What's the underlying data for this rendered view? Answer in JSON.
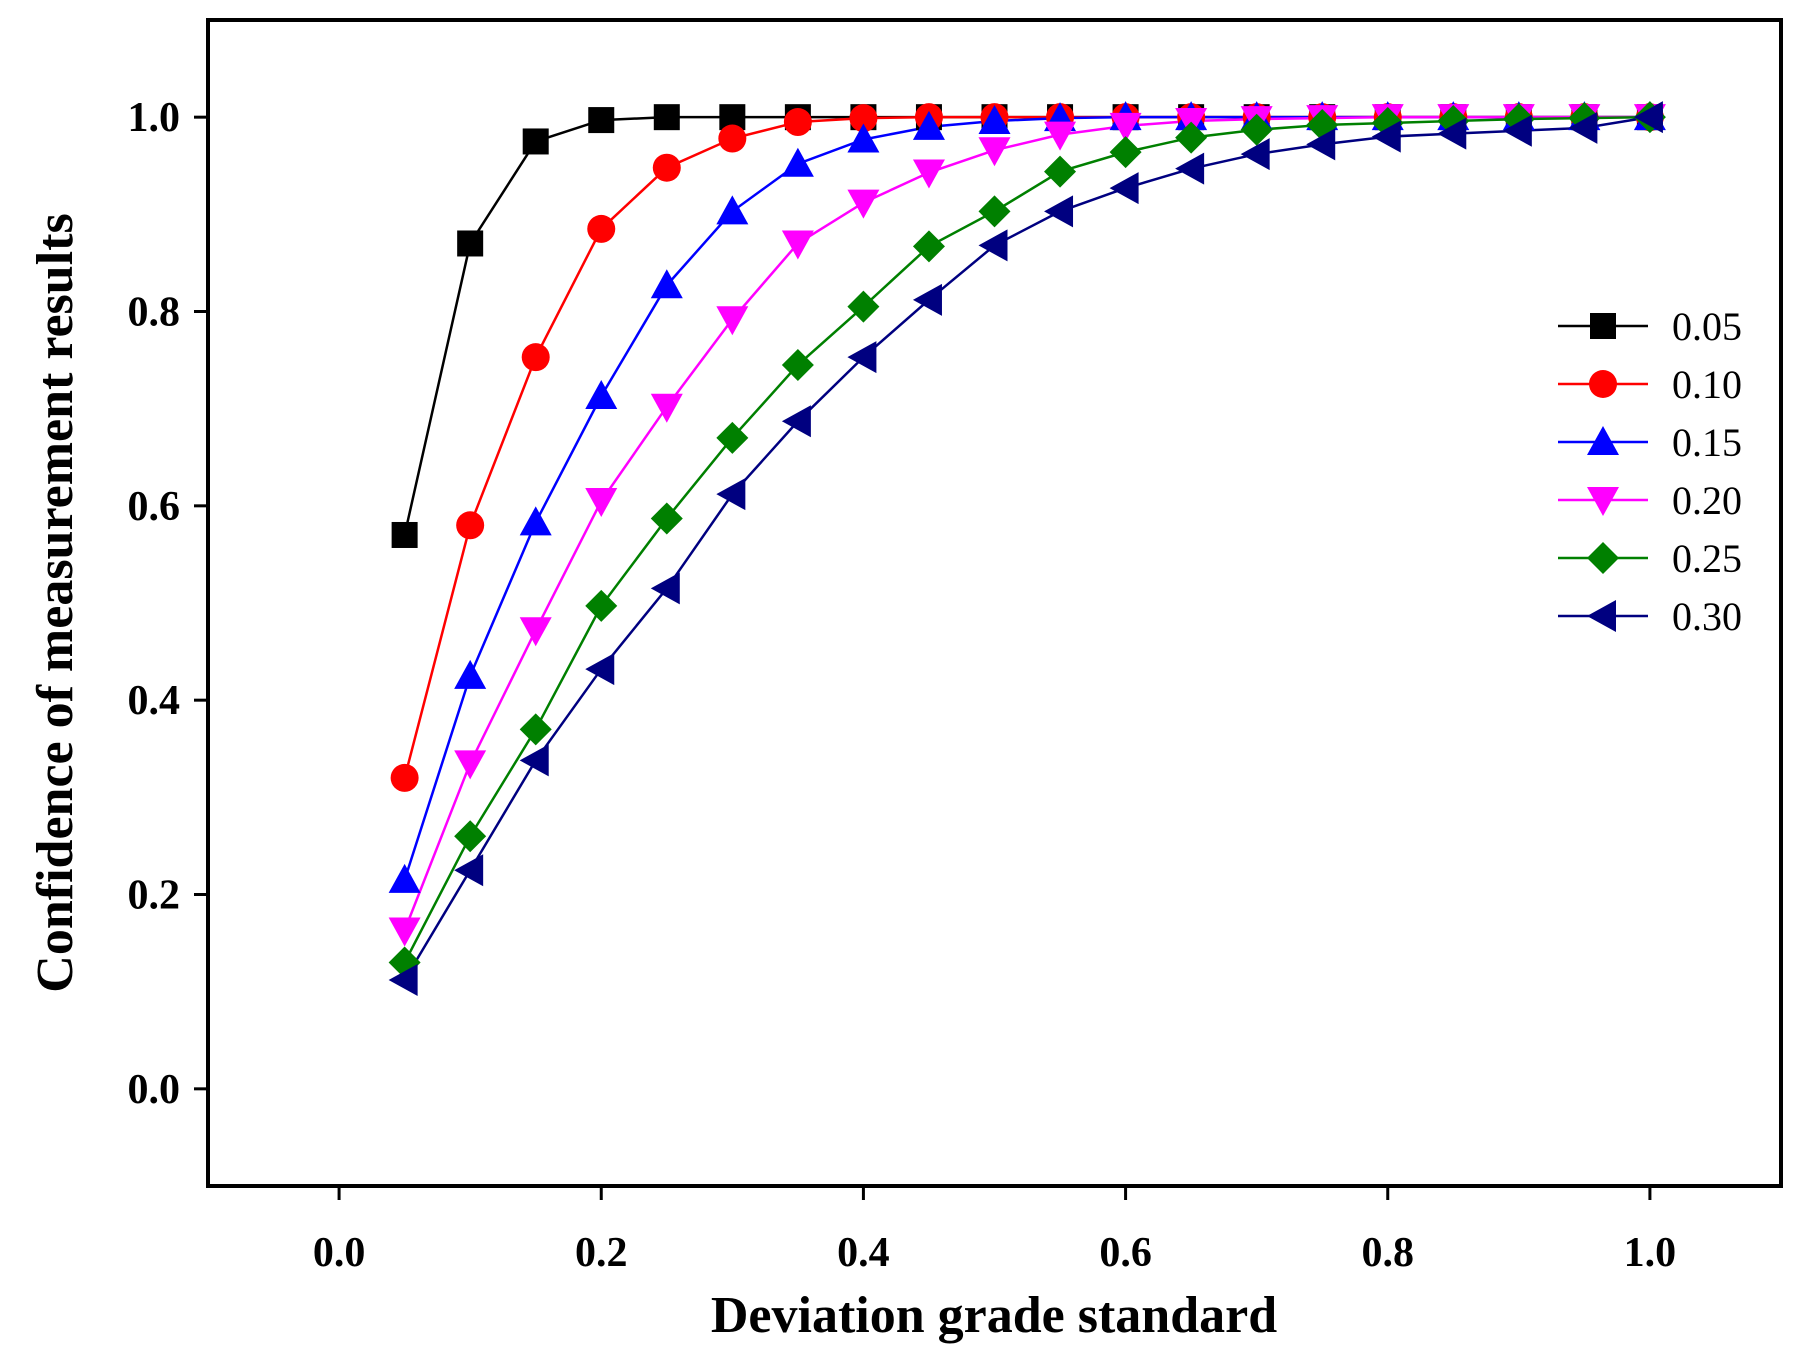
{
  "chart_data": {
    "type": "line",
    "title": "",
    "xlabel": "Deviation grade standard",
    "ylabel": "Confidence of measurement results",
    "xlim": [
      -0.1,
      1.1
    ],
    "ylim": [
      -0.1,
      1.1
    ],
    "xticks": [
      "0.0",
      "0.2",
      "0.4",
      "0.6",
      "0.8",
      "1.0"
    ],
    "yticks": [
      "0.0",
      "0.2",
      "0.4",
      "0.6",
      "0.8",
      "1.0"
    ],
    "legend_position": "right",
    "x": [
      0.05,
      0.1,
      0.15,
      0.2,
      0.25,
      0.3,
      0.35,
      0.4,
      0.45,
      0.5,
      0.55,
      0.6,
      0.65,
      0.7,
      0.75,
      0.8,
      0.85,
      0.9,
      0.95,
      1.0
    ],
    "series": [
      {
        "name": "0.05",
        "color": "#000000",
        "marker": "square",
        "values": [
          0.57,
          0.87,
          0.975,
          0.997,
          1.0,
          1.0,
          1.0,
          1.0,
          1.0,
          1.0,
          1.0,
          1.0,
          1.0,
          1.0,
          1.0,
          1.0,
          1.0,
          1.0,
          1.0,
          1.0
        ]
      },
      {
        "name": "0.10",
        "color": "#ff0000",
        "marker": "circle",
        "values": [
          0.32,
          0.58,
          0.753,
          0.885,
          0.948,
          0.978,
          0.995,
          0.999,
          1.0,
          1.0,
          1.0,
          1.0,
          1.0,
          1.0,
          1.0,
          1.0,
          1.0,
          1.0,
          1.0,
          1.0
        ]
      },
      {
        "name": "0.15",
        "color": "#0000ff",
        "marker": "triangle-up",
        "values": [
          0.215,
          0.425,
          0.583,
          0.713,
          0.827,
          0.903,
          0.952,
          0.977,
          0.99,
          0.996,
          0.999,
          1.0,
          1.0,
          1.0,
          1.0,
          1.0,
          1.0,
          1.0,
          1.0,
          1.0
        ]
      },
      {
        "name": "0.20",
        "color": "#ff00ff",
        "marker": "triangle-down",
        "values": [
          0.163,
          0.335,
          0.472,
          0.605,
          0.702,
          0.792,
          0.87,
          0.912,
          0.943,
          0.966,
          0.982,
          0.991,
          0.996,
          0.998,
          0.999,
          1.0,
          1.0,
          1.0,
          1.0,
          1.0
        ]
      },
      {
        "name": "0.25",
        "color": "#008000",
        "marker": "diamond",
        "values": [
          0.13,
          0.26,
          0.37,
          0.497,
          0.587,
          0.67,
          0.745,
          0.805,
          0.867,
          0.903,
          0.944,
          0.964,
          0.979,
          0.987,
          0.992,
          0.994,
          0.996,
          0.998,
          0.999,
          1.0
        ]
      },
      {
        "name": "0.30",
        "color": "#000080",
        "marker": "triangle-left",
        "values": [
          0.112,
          0.225,
          0.338,
          0.432,
          0.515,
          0.612,
          0.687,
          0.753,
          0.812,
          0.868,
          0.903,
          0.927,
          0.947,
          0.962,
          0.972,
          0.98,
          0.983,
          0.986,
          0.989,
          1.0
        ]
      }
    ]
  }
}
